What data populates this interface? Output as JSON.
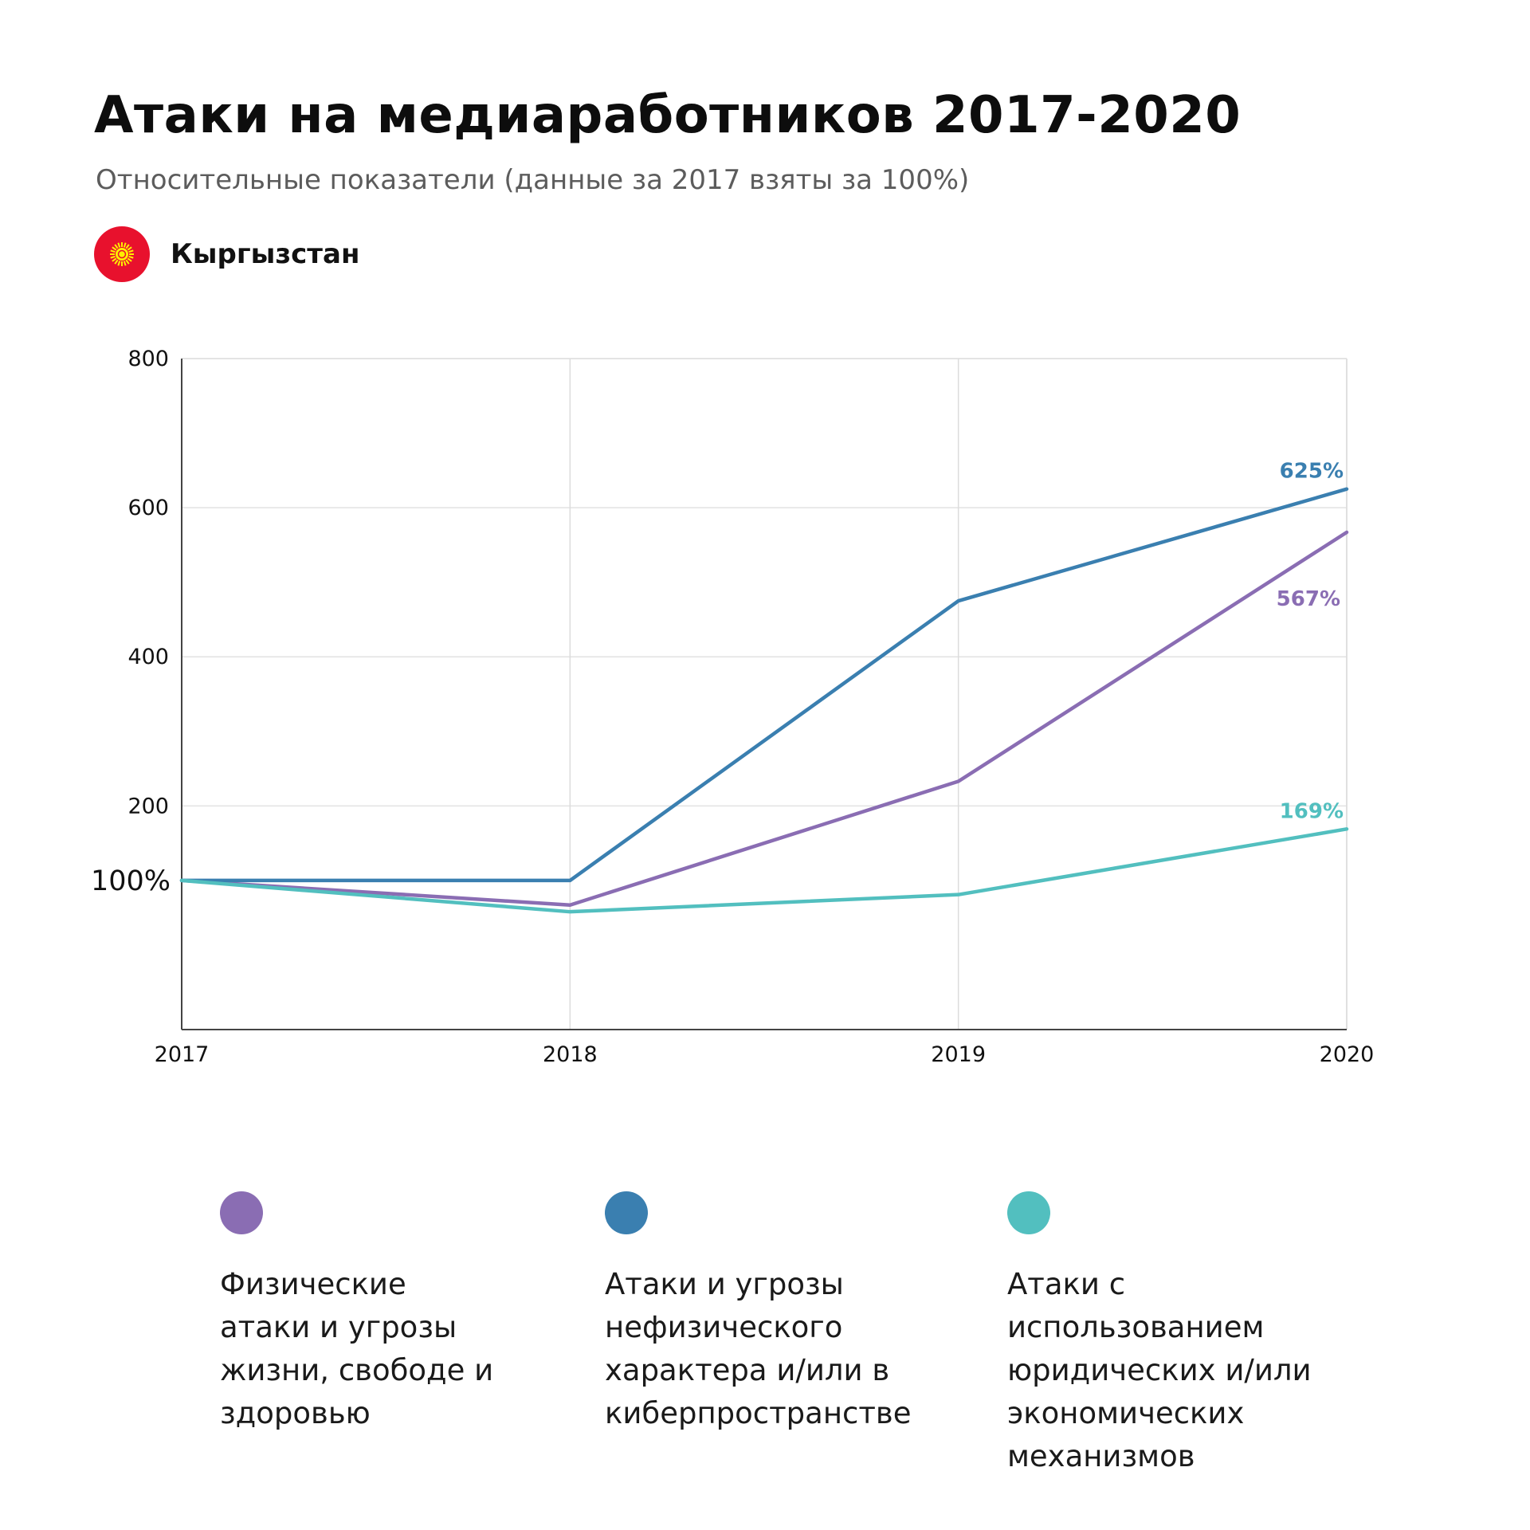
{
  "header": {
    "title": "Атаки на медиаработников 2017-2020",
    "subtitle": "Относительные показатели (данные за 2017 взяты за 100%)",
    "country": "Кыргызстан",
    "flag_colors": {
      "field": "#e8112d",
      "sun": "#ffef00"
    }
  },
  "chart_data": {
    "type": "line",
    "x": [
      "2017",
      "2018",
      "2019",
      "2020"
    ],
    "ylim": [
      -100,
      800
    ],
    "yticks": [
      "200",
      "400",
      "600",
      "800"
    ],
    "baseline_label": "100%",
    "baseline_value": 100,
    "grid": true,
    "legend_position": "bottom",
    "series": [
      {
        "name": "Физические\nатаки и угрозы\nжизни, свободе и\nздоровью",
        "color": "#8a6db3",
        "values": [
          100,
          67,
          233,
          567
        ],
        "end_label": "567%"
      },
      {
        "name": "Атаки и угрозы\nнефизического\nхарактера и/или в\nкиберпространстве",
        "color": "#3a7fb0",
        "values": [
          100,
          100,
          475,
          625
        ],
        "end_label": "625%"
      },
      {
        "name": "Атаки с использованием\nюридических и/или\nэкономических\nмеханизмов",
        "color": "#52bfbf",
        "values": [
          100,
          58,
          81,
          169
        ],
        "end_label": "169%"
      }
    ]
  }
}
